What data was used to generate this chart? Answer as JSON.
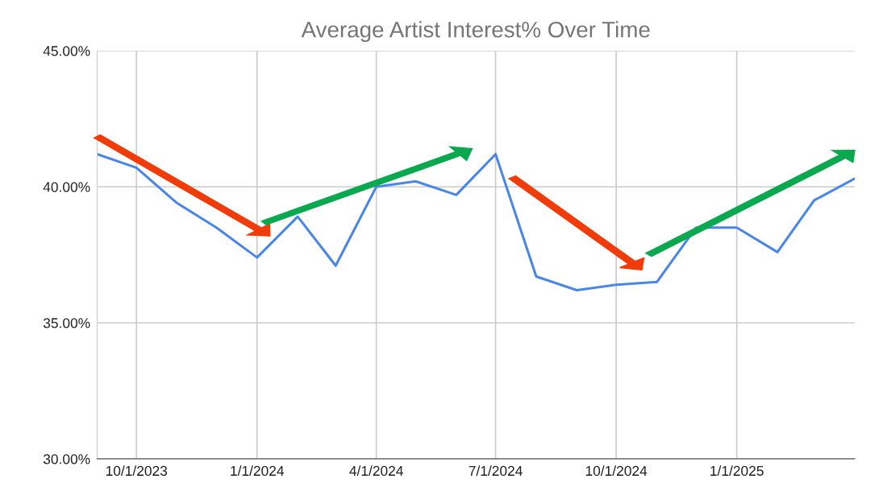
{
  "chart_data": {
    "type": "line",
    "title": "Average Artist Interest% Over Time",
    "x": [
      "2023-09-01",
      "2023-10-01",
      "2023-11-01",
      "2023-12-01",
      "2024-01-01",
      "2024-02-01",
      "2024-03-01",
      "2024-04-01",
      "2024-05-01",
      "2024-06-01",
      "2024-07-01",
      "2024-08-01",
      "2024-09-01",
      "2024-10-01",
      "2024-11-01",
      "2024-12-01",
      "2025-01-01",
      "2025-02-01",
      "2025-03-01",
      "2025-04-01"
    ],
    "series": [
      {
        "color": "#4a86e8",
        "values": [
          41.2,
          40.7,
          39.4,
          38.5,
          37.4,
          38.9,
          37.1,
          40.0,
          40.2,
          39.7,
          41.2,
          36.7,
          36.2,
          36.4,
          36.5,
          38.5,
          38.5,
          37.6,
          39.5,
          40.3
        ]
      }
    ],
    "xlim": [
      "2023-09-01",
      "2025-04-01"
    ],
    "xticks": [
      {
        "value": "2023-10-01",
        "label": "10/1/2023"
      },
      {
        "value": "2024-01-01",
        "label": "1/1/2024"
      },
      {
        "value": "2024-04-01",
        "label": "4/1/2024"
      },
      {
        "value": "2024-07-01",
        "label": "7/1/2024"
      },
      {
        "value": "2024-10-01",
        "label": "10/1/2024"
      },
      {
        "value": "2025-01-01",
        "label": "1/1/2025"
      }
    ],
    "ylim": [
      30,
      45
    ],
    "yticks": [
      {
        "value": 30,
        "label": "30.00%"
      },
      {
        "value": 35,
        "label": "35.00%"
      },
      {
        "value": 40,
        "label": "40.00%"
      },
      {
        "value": 45,
        "label": "45.00%"
      }
    ],
    "grid": true,
    "marker": "none",
    "line_style": "solid"
  }
}
